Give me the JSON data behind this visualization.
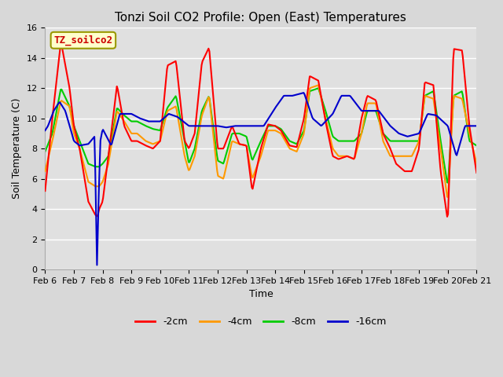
{
  "title": "Tonzi Soil CO2 Profile: Open (East) Temperatures",
  "xlabel": "Time",
  "ylabel": "Soil Temperature (C)",
  "ylim": [
    0,
    16
  ],
  "xtick_labels": [
    "Feb 6",
    "Feb 7",
    "Feb 8",
    "Feb 9",
    "Feb 10",
    "Feb 11",
    "Feb 12",
    "Feb 13",
    "Feb 14",
    "Feb 15",
    "Feb 16",
    "Feb 17",
    "Feb 18",
    "Feb 19",
    "Feb 20",
    "Feb 21"
  ],
  "fig_facecolor": "#d8d8d8",
  "ax_facecolor": "#e0e0e0",
  "legend_label": "TZ_soilco2",
  "legend_box_color": "#ffffcc",
  "legend_box_edge": "#999900",
  "legend_text_color": "#cc0000",
  "series_labels": [
    "-2cm",
    "-4cm",
    "-8cm",
    "-16cm"
  ],
  "series_colors": [
    "#ff0000",
    "#ff9900",
    "#00cc00",
    "#0000cc"
  ],
  "line_width": 1.5,
  "grid_color": "#ffffff",
  "title_fontsize": 11,
  "axis_fontsize": 9,
  "tick_fontsize": 8,
  "red_t": [
    0,
    0.25,
    0.55,
    0.85,
    1.0,
    1.2,
    1.5,
    1.75,
    1.82,
    1.88,
    2.0,
    2.2,
    2.5,
    2.75,
    3.0,
    3.2,
    3.5,
    3.75,
    4.0,
    4.25,
    4.55,
    4.85,
    5.0,
    5.2,
    5.45,
    5.7,
    6.0,
    6.2,
    6.5,
    6.75,
    7.0,
    7.2,
    7.5,
    7.75,
    8.0,
    8.2,
    8.5,
    8.75,
    9.0,
    9.2,
    9.5,
    9.75,
    10.0,
    10.2,
    10.5,
    10.75,
    11.0,
    11.2,
    11.5,
    11.75,
    12.0,
    12.2,
    12.5,
    12.75,
    13.0,
    13.2,
    13.5,
    13.75,
    14.0,
    14.2,
    14.5,
    14.75,
    15.0
  ],
  "red_v": [
    5.2,
    10.0,
    15.1,
    12.0,
    9.5,
    8.0,
    4.5,
    3.6,
    3.5,
    4.0,
    4.5,
    7.5,
    12.2,
    9.5,
    8.5,
    8.5,
    8.2,
    8.0,
    8.5,
    13.5,
    13.8,
    8.5,
    8.0,
    9.0,
    13.7,
    14.7,
    8.0,
    8.0,
    9.5,
    8.3,
    8.2,
    5.2,
    8.0,
    9.6,
    9.5,
    9.2,
    8.2,
    8.1,
    10.0,
    12.8,
    12.5,
    9.8,
    7.5,
    7.3,
    7.5,
    7.3,
    10.0,
    11.5,
    11.2,
    9.0,
    8.0,
    7.0,
    6.5,
    6.5,
    8.0,
    12.4,
    12.2,
    6.5,
    3.2,
    14.6,
    14.5,
    9.5,
    6.4
  ],
  "orange_t": [
    0,
    0.25,
    0.55,
    0.85,
    1.0,
    1.2,
    1.5,
    1.75,
    1.88,
    2.0,
    2.2,
    2.5,
    2.75,
    3.0,
    3.2,
    3.5,
    3.75,
    4.0,
    4.25,
    4.55,
    4.85,
    5.0,
    5.2,
    5.45,
    5.7,
    6.0,
    6.2,
    6.5,
    6.75,
    7.0,
    7.2,
    7.5,
    7.75,
    8.0,
    8.2,
    8.5,
    8.75,
    9.0,
    9.2,
    9.5,
    9.75,
    10.0,
    10.2,
    10.5,
    10.75,
    11.0,
    11.2,
    11.5,
    11.75,
    12.0,
    12.2,
    12.5,
    12.75,
    13.0,
    13.2,
    13.5,
    13.75,
    14.0,
    14.2,
    14.5,
    14.75,
    15.0
  ],
  "orange_v": [
    6.5,
    8.5,
    11.2,
    10.8,
    9.0,
    8.0,
    5.8,
    5.5,
    5.5,
    5.8,
    7.0,
    10.5,
    9.8,
    9.0,
    9.0,
    8.5,
    8.3,
    8.5,
    10.5,
    10.8,
    7.5,
    6.5,
    7.5,
    10.2,
    11.5,
    6.2,
    6.0,
    8.5,
    8.3,
    8.2,
    6.0,
    7.5,
    9.2,
    9.2,
    9.0,
    8.0,
    7.8,
    9.0,
    12.0,
    12.2,
    10.0,
    8.0,
    7.5,
    7.5,
    7.3,
    9.0,
    11.0,
    11.0,
    8.5,
    7.5,
    7.5,
    7.5,
    7.5,
    8.5,
    11.5,
    11.3,
    8.0,
    4.5,
    11.5,
    11.3,
    9.0,
    7.0
  ],
  "green_t": [
    0,
    0.25,
    0.55,
    0.85,
    1.0,
    1.2,
    1.5,
    1.75,
    1.88,
    2.0,
    2.2,
    2.5,
    2.75,
    3.0,
    3.2,
    3.5,
    3.75,
    4.0,
    4.25,
    4.55,
    4.85,
    5.0,
    5.2,
    5.45,
    5.7,
    6.0,
    6.2,
    6.5,
    6.75,
    7.0,
    7.2,
    7.5,
    7.75,
    8.0,
    8.2,
    8.5,
    8.75,
    9.0,
    9.2,
    9.5,
    9.75,
    10.0,
    10.2,
    10.5,
    10.75,
    11.0,
    11.2,
    11.5,
    11.75,
    12.0,
    12.2,
    12.5,
    12.75,
    13.0,
    13.2,
    13.5,
    13.75,
    14.0,
    14.2,
    14.5,
    14.75,
    15.0
  ],
  "green_v": [
    7.8,
    9.0,
    12.0,
    10.8,
    9.5,
    8.5,
    7.0,
    6.8,
    6.8,
    7.0,
    7.5,
    10.7,
    10.2,
    9.8,
    9.8,
    9.5,
    9.3,
    9.2,
    10.7,
    11.5,
    8.5,
    7.0,
    8.0,
    10.5,
    11.5,
    7.2,
    7.0,
    9.0,
    9.0,
    8.8,
    7.2,
    8.5,
    9.5,
    9.5,
    9.3,
    8.5,
    8.3,
    9.2,
    11.8,
    12.0,
    10.5,
    8.8,
    8.5,
    8.5,
    8.5,
    9.0,
    10.5,
    10.5,
    9.0,
    8.5,
    8.5,
    8.5,
    8.5,
    8.5,
    11.5,
    11.8,
    8.5,
    5.5,
    11.5,
    11.8,
    8.5,
    8.2
  ],
  "blue_t": [
    0,
    0.1,
    0.3,
    0.5,
    0.7,
    0.9,
    1.0,
    1.2,
    1.5,
    1.72,
    1.77,
    1.8,
    1.85,
    1.92,
    2.0,
    2.3,
    2.6,
    3.0,
    3.3,
    3.6,
    4.0,
    4.3,
    4.6,
    5.0,
    5.3,
    5.6,
    6.0,
    6.3,
    6.6,
    7.0,
    7.3,
    7.6,
    8.0,
    8.3,
    8.6,
    9.0,
    9.3,
    9.6,
    10.0,
    10.3,
    10.6,
    11.0,
    11.3,
    11.6,
    12.0,
    12.3,
    12.6,
    13.0,
    13.3,
    13.6,
    14.0,
    14.3,
    14.6,
    15.0
  ],
  "blue_v": [
    9.2,
    9.5,
    10.5,
    11.1,
    10.5,
    9.2,
    8.5,
    8.2,
    8.3,
    8.8,
    4.0,
    0.0,
    4.0,
    8.5,
    9.3,
    8.2,
    10.3,
    10.3,
    10.0,
    9.8,
    9.8,
    10.3,
    10.1,
    9.5,
    9.5,
    9.5,
    9.5,
    9.4,
    9.5,
    9.5,
    9.5,
    9.5,
    10.7,
    11.5,
    11.5,
    11.7,
    10.0,
    9.5,
    10.3,
    11.5,
    11.5,
    10.5,
    10.5,
    10.5,
    9.5,
    9.0,
    8.8,
    9.0,
    10.3,
    10.2,
    9.5,
    7.5,
    9.5,
    9.5
  ]
}
